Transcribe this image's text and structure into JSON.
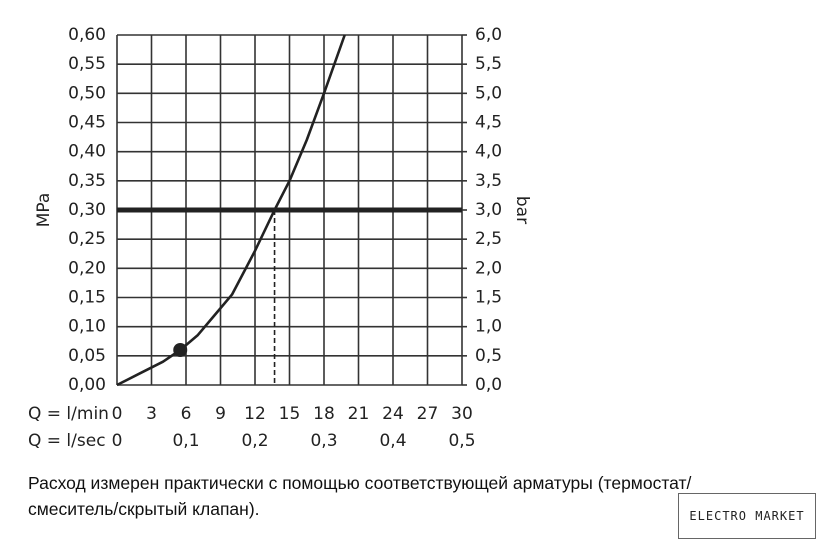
{
  "chart_data": {
    "type": "line",
    "x": [
      0,
      2,
      4,
      5.5,
      7,
      8.5,
      10,
      12,
      13.7,
      15,
      16.5,
      18,
      19.8
    ],
    "values": [
      0,
      0.02,
      0.04,
      0.06,
      0.085,
      0.12,
      0.155,
      0.23,
      0.3,
      0.35,
      0.42,
      0.5,
      0.6
    ],
    "color": "#222222",
    "ylabel": "MPa",
    "y2label": "bar",
    "xlabel": "Q = l/min",
    "x2label": "Q = l/sec",
    "xlim": [
      0,
      30
    ],
    "xticks": [
      0,
      3,
      6,
      9,
      12,
      15,
      18,
      21,
      24,
      27,
      30
    ],
    "x2lim": [
      0,
      0.5
    ],
    "x2ticks": [
      0,
      {
        "value": 0.1,
        "label": "0,1"
      },
      {
        "value": 0.2,
        "label": "0,2"
      },
      {
        "value": 0.3,
        "label": "0,3"
      },
      {
        "value": 0.4,
        "label": "0,4"
      },
      {
        "value": 0.5,
        "label": "0,5"
      }
    ],
    "ylim": [
      0,
      0.6
    ],
    "yticks": [
      {
        "value": 0,
        "label": "0,00"
      },
      {
        "value": 0.05,
        "label": "0,05"
      },
      {
        "value": 0.1,
        "label": "0,10"
      },
      {
        "value": 0.15,
        "label": "0,15"
      },
      {
        "value": 0.2,
        "label": "0,20"
      },
      {
        "value": 0.25,
        "label": "0,25"
      },
      {
        "value": 0.3,
        "label": "0,30"
      },
      {
        "value": 0.35,
        "label": "0,35"
      },
      {
        "value": 0.4,
        "label": "0,40"
      },
      {
        "value": 0.45,
        "label": "0,45"
      },
      {
        "value": 0.5,
        "label": "0,50"
      },
      {
        "value": 0.55,
        "label": "0,55"
      },
      {
        "value": 0.6,
        "label": "0,60"
      }
    ],
    "y2lim": [
      0,
      6
    ],
    "y2ticks": [
      {
        "value": 0,
        "label": "0,0"
      },
      {
        "value": 0.5,
        "label": "0,5"
      },
      {
        "value": 1,
        "label": "1,0"
      },
      {
        "value": 1.5,
        "label": "1,5"
      },
      {
        "value": 2,
        "label": "2,0"
      },
      {
        "value": 2.5,
        "label": "2,5"
      },
      {
        "value": 3,
        "label": "3,0"
      },
      {
        "value": 3.5,
        "label": "3,5"
      },
      {
        "value": 4,
        "label": "4,0"
      },
      {
        "value": 4.5,
        "label": "4,5"
      },
      {
        "value": 5,
        "label": "5,0"
      },
      {
        "value": 5.5,
        "label": "5,5"
      },
      {
        "value": 6,
        "label": "6,0"
      }
    ],
    "grid": true,
    "reference_line": 0.3,
    "reference_x": 13.7,
    "marker": {
      "x": 5.5,
      "y": 0.06
    }
  },
  "caption": [
    "Расход измерен практически с помощью соответствующей арматуры (термостат/",
    "смеситель/скрытый клапан)."
  ],
  "watermark": "ELECTRO MARKET"
}
